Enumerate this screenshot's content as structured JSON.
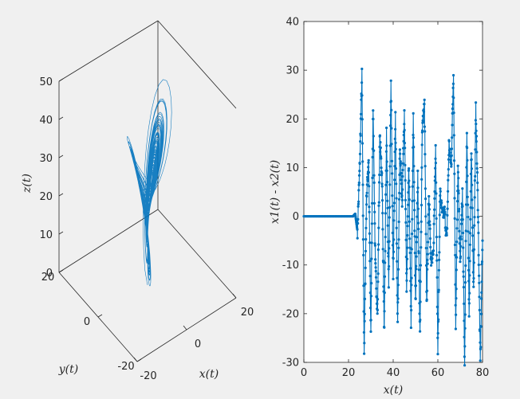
{
  "chart_data": [
    {
      "type": "line",
      "subtype": "3d-trajectory",
      "title": "",
      "xlabel": "x(t)",
      "ylabel": "y(t)",
      "zlabel": "z(t)",
      "xlim": [
        -20,
        20
      ],
      "ylim": [
        -20,
        20
      ],
      "zlim": [
        0,
        50
      ],
      "x_ticks": [
        "-20",
        "0",
        "20"
      ],
      "y_ticks": [
        "-20",
        "0",
        "20"
      ],
      "z_ticks": [
        "0",
        "10",
        "20",
        "30",
        "40",
        "50"
      ],
      "grid": false,
      "color": "#0072BD",
      "attractor": "two-lobe chaotic attractor (Lorenz-like), trajectory from origin region spiraling into a left lobe peaking near z≈35 and a right lobe peaking near z≈48"
    },
    {
      "type": "line",
      "markers": true,
      "title": "",
      "xlabel": "x(t)",
      "ylabel": "x1(t) - x2(t)",
      "xlim": [
        0,
        80
      ],
      "ylim": [
        -30,
        40
      ],
      "x_ticks": [
        "0",
        "20",
        "40",
        "60",
        "80"
      ],
      "y_ticks": [
        "-30",
        "-20",
        "-10",
        "0",
        "10",
        "20",
        "30",
        "40"
      ],
      "grid": false,
      "color": "#0072BD",
      "series": [
        {
          "x": [
            0,
            5,
            10,
            15,
            20,
            22,
            23,
            24,
            25,
            26,
            27,
            28,
            29,
            30,
            31,
            32,
            33,
            34,
            35,
            36,
            37,
            38,
            39,
            40,
            41,
            42,
            43,
            44,
            45,
            46,
            47,
            48,
            49,
            50,
            51,
            52,
            53,
            54,
            55,
            56,
            57,
            58,
            59,
            60,
            61,
            62,
            63,
            64,
            65,
            66,
            67,
            68,
            69,
            70,
            71,
            72,
            73,
            74,
            75,
            76,
            77,
            78,
            79,
            80
          ],
          "y": [
            0,
            0,
            0,
            0,
            0,
            0,
            0.5,
            -3,
            10,
            29,
            -28,
            3,
            12,
            -25,
            23,
            -10,
            -20,
            16,
            8,
            -24,
            17,
            -15,
            28,
            -12,
            20,
            -22,
            14,
            3,
            22,
            -15,
            10,
            -22,
            20,
            -18,
            8,
            -25,
            18,
            23,
            -18,
            5,
            -10,
            -8,
            15,
            -28,
            5,
            0,
            1,
            -5,
            15,
            10,
            30,
            -22,
            10,
            -10,
            5,
            -31,
            18,
            -20,
            13,
            -15,
            22,
            1,
            -30,
            -5
          ]
        }
      ]
    }
  ]
}
